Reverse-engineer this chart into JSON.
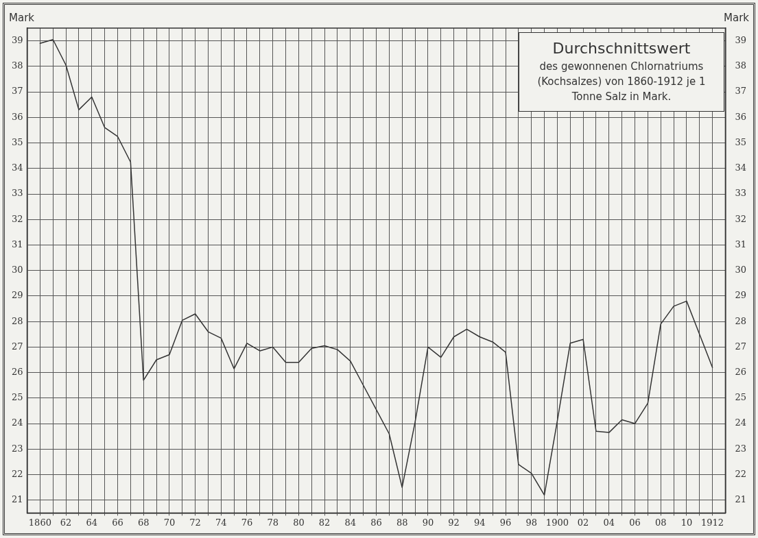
{
  "chart_data": {
    "type": "line",
    "title": "Durchschnittswert",
    "subtitle": "des gewonnenen Chlornatriums (Kochsalzes) von 1860-1912 je 1 Tonne Salz in Mark.",
    "ylabel": "Mark",
    "y2label": "Mark",
    "x": [
      1860,
      1861,
      1862,
      1863,
      1864,
      1865,
      1866,
      1867,
      1868,
      1869,
      1870,
      1871,
      1872,
      1873,
      1874,
      1875,
      1876,
      1877,
      1878,
      1879,
      1880,
      1881,
      1882,
      1883,
      1884,
      1885,
      1886,
      1887,
      1888,
      1889,
      1890,
      1891,
      1892,
      1893,
      1894,
      1895,
      1896,
      1897,
      1898,
      1899,
      1900,
      1901,
      1902,
      1903,
      1904,
      1905,
      1906,
      1907,
      1908,
      1909,
      1910,
      1911,
      1912
    ],
    "series": [
      {
        "color": "#333333",
        "values": [
          38.9,
          39.05,
          38.05,
          36.3,
          36.8,
          35.6,
          35.25,
          34.25,
          25.7,
          26.5,
          26.7,
          28.05,
          28.3,
          27.6,
          27.35,
          26.15,
          27.15,
          26.85,
          27.0,
          26.4,
          26.4,
          26.95,
          27.05,
          26.9,
          26.45,
          25.5,
          24.55,
          23.6,
          21.5,
          24.05,
          27.0,
          26.6,
          27.4,
          27.7,
          27.4,
          27.2,
          26.8,
          22.4,
          22.05,
          21.2,
          24.1,
          27.15,
          27.3,
          23.7,
          23.65,
          24.15,
          24.0,
          24.8,
          27.9,
          28.6,
          28.8,
          27.5,
          26.2
        ]
      }
    ],
    "xlim": [
      1859,
      1913
    ],
    "xticks": [
      {
        "value": 1860,
        "label": "1860"
      },
      {
        "value": 1861,
        "label": null
      },
      {
        "value": 1862,
        "label": "62"
      },
      {
        "value": 1863,
        "label": null
      },
      {
        "value": 1864,
        "label": "64"
      },
      {
        "value": 1865,
        "label": null
      },
      {
        "value": 1866,
        "label": "66"
      },
      {
        "value": 1867,
        "label": null
      },
      {
        "value": 1868,
        "label": "68"
      },
      {
        "value": 1869,
        "label": null
      },
      {
        "value": 1870,
        "label": "70"
      },
      {
        "value": 1871,
        "label": null
      },
      {
        "value": 1872,
        "label": "72"
      },
      {
        "value": 1873,
        "label": null
      },
      {
        "value": 1874,
        "label": "74"
      },
      {
        "value": 1875,
        "label": null
      },
      {
        "value": 1876,
        "label": "76"
      },
      {
        "value": 1877,
        "label": null
      },
      {
        "value": 1878,
        "label": "78"
      },
      {
        "value": 1879,
        "label": null
      },
      {
        "value": 1880,
        "label": "80"
      },
      {
        "value": 1881,
        "label": null
      },
      {
        "value": 1882,
        "label": "82"
      },
      {
        "value": 1883,
        "label": null
      },
      {
        "value": 1884,
        "label": "84"
      },
      {
        "value": 1885,
        "label": null
      },
      {
        "value": 1886,
        "label": "86"
      },
      {
        "value": 1887,
        "label": null
      },
      {
        "value": 1888,
        "label": "88"
      },
      {
        "value": 1889,
        "label": null
      },
      {
        "value": 1890,
        "label": "90"
      },
      {
        "value": 1891,
        "label": null
      },
      {
        "value": 1892,
        "label": "92"
      },
      {
        "value": 1893,
        "label": null
      },
      {
        "value": 1894,
        "label": "94"
      },
      {
        "value": 1895,
        "label": null
      },
      {
        "value": 1896,
        "label": "96"
      },
      {
        "value": 1897,
        "label": null
      },
      {
        "value": 1898,
        "label": "98"
      },
      {
        "value": 1899,
        "label": null
      },
      {
        "value": 1900,
        "label": "1900"
      },
      {
        "value": 1901,
        "label": null
      },
      {
        "value": 1902,
        "label": "02"
      },
      {
        "value": 1903,
        "label": null
      },
      {
        "value": 1904,
        "label": "04"
      },
      {
        "value": 1905,
        "label": null
      },
      {
        "value": 1906,
        "label": "06"
      },
      {
        "value": 1907,
        "label": null
      },
      {
        "value": 1908,
        "label": "08"
      },
      {
        "value": 1909,
        "label": null
      },
      {
        "value": 1910,
        "label": "10"
      },
      {
        "value": 1911,
        "label": null
      },
      {
        "value": 1912,
        "label": "1912"
      }
    ],
    "ylim": [
      20.5,
      39.5
    ],
    "yticks": [
      21,
      22,
      23,
      24,
      25,
      26,
      27,
      28,
      29,
      30,
      31,
      32,
      33,
      34,
      35,
      36,
      37,
      38,
      39
    ],
    "y2lim": [
      20.5,
      39.5
    ],
    "y2ticks": [
      21,
      22,
      23,
      24,
      25,
      26,
      27,
      28,
      29,
      30,
      31,
      32,
      33,
      34,
      35,
      36,
      37,
      38,
      39
    ],
    "grid": true,
    "marker": "none",
    "line_style": "solid",
    "legend": false
  }
}
